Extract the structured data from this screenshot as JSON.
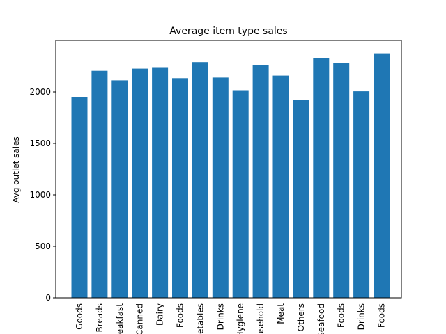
{
  "chart_data": {
    "type": "bar",
    "title": "Average item type sales",
    "xlabel": "",
    "ylabel": "Avg outlet sales",
    "ylim": [
      0,
      2500
    ],
    "yticks": [
      0,
      500,
      1000,
      1500,
      2000
    ],
    "grid": false,
    "bar_color": "#1f77b4",
    "categories": [
      "Goods",
      "Breads",
      "Breakfast",
      "Canned",
      "Dairy",
      "Foods",
      "Vegetables",
      "Drinks",
      "Hygiene",
      "Household",
      "Meat",
      "Others",
      "Seafood",
      "Foods",
      "Drinks",
      "Foods"
    ],
    "values": [
      1952,
      2205,
      2112,
      2226,
      2233,
      2133,
      2289,
      2139,
      2010,
      2259,
      2158,
      1926,
      2327,
      2277,
      2006,
      2374
    ]
  }
}
